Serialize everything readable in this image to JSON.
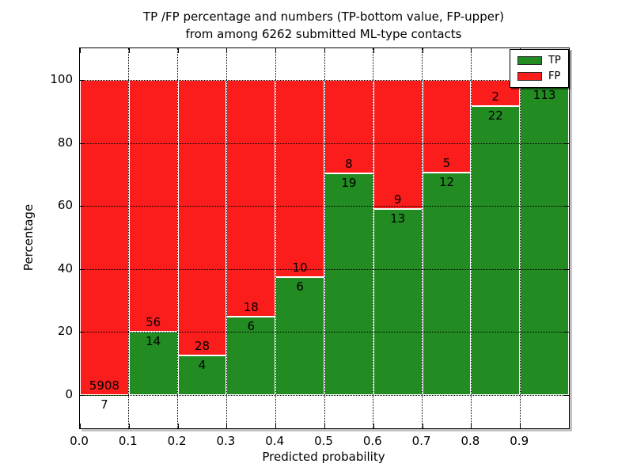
{
  "figure": {
    "title_line1": "TP /FP percentage and numbers (TP-bottom value, FP-upper)",
    "title_line2": "from among 6262 submitted ML-type contacts"
  },
  "chart_data": {
    "type": "bar",
    "stacked": true,
    "title": "TP /FP percentage and numbers (TP-bottom value, FP-upper) from among 6262 submitted ML-type contacts",
    "xlabel": "Predicted probability",
    "ylabel": "Percentage",
    "total_submitted": 6262,
    "bin_width": 0.1,
    "bin_starts": [
      0.0,
      0.1,
      0.2,
      0.3,
      0.4,
      0.5,
      0.6,
      0.7,
      0.8,
      0.9
    ],
    "series": [
      {
        "name": "TP",
        "color": "#228b22",
        "counts": [
          7,
          14,
          4,
          6,
          6,
          19,
          13,
          12,
          22,
          113
        ]
      },
      {
        "name": "FP",
        "color": "#fb1c1c",
        "counts": [
          5908,
          56,
          28,
          18,
          10,
          8,
          9,
          5,
          2,
          2
        ]
      }
    ],
    "tp_percentages": [
      0.12,
      20.0,
      12.5,
      25.0,
      37.5,
      70.37,
      59.09,
      70.59,
      91.67,
      98.26
    ],
    "xticks": [
      "0.0",
      "0.1",
      "0.2",
      "0.3",
      "0.4",
      "0.5",
      "0.6",
      "0.7",
      "0.8",
      "0.9"
    ],
    "yticks": [
      0,
      20,
      40,
      60,
      80,
      100
    ],
    "xlim": [
      0.0,
      1.0
    ],
    "ylim": [
      -10.5,
      110.5
    ],
    "grid": true,
    "legend": {
      "position": "upper right",
      "items": [
        {
          "label": "TP",
          "color": "#228b22"
        },
        {
          "label": "FP",
          "color": "#fb1c1c"
        }
      ]
    }
  }
}
